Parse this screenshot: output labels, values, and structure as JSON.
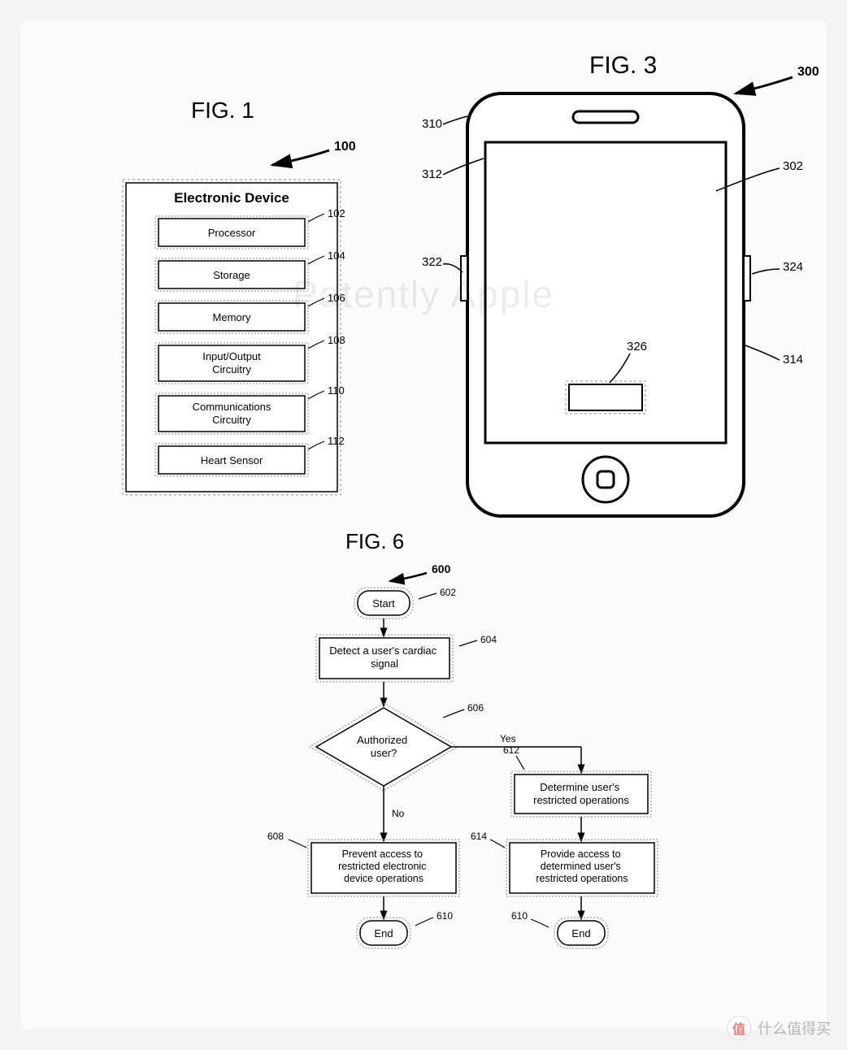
{
  "watermark": "Patently Apple",
  "footer": {
    "badge": "值",
    "text": "什么值得买"
  },
  "colors": {
    "stroke": "#000000",
    "fill_box": "#ffffff",
    "dash": "#888888",
    "bg": "#fbfbfb"
  },
  "fig1": {
    "title": "FIG. 1",
    "arrow_label": "100",
    "header": "Electronic Device",
    "blocks": [
      {
        "label": "Processor",
        "ref": "102"
      },
      {
        "label": "Storage",
        "ref": "104"
      },
      {
        "label": "Memory",
        "ref": "106"
      },
      {
        "label": "Input/Output Circuitry",
        "ref": "108"
      },
      {
        "label": "Communications Circuitry",
        "ref": "110"
      },
      {
        "label": "Heart Sensor",
        "ref": "112"
      }
    ]
  },
  "fig3": {
    "title": "FIG. 3",
    "arrow_label": "300",
    "refs": {
      "r310": "310",
      "r302": "302",
      "r312": "312",
      "r322": "322",
      "r324": "324",
      "r314": "314",
      "r326": "326"
    }
  },
  "fig6": {
    "title": "FIG. 6",
    "arrow_label": "600",
    "nodes": {
      "start": {
        "label": "Start",
        "ref": "602"
      },
      "detect": {
        "label": "Detect a user's cardiac signal",
        "ref": "604"
      },
      "auth": {
        "label": "Authorized user?",
        "ref": "606"
      },
      "prevent": {
        "label": "Prevent access to restricted electronic device operations",
        "ref": "608"
      },
      "determine": {
        "label": "Determine user's restricted operations",
        "ref": "612"
      },
      "provide": {
        "label": "Provide access to determined user's restricted operations",
        "ref": "614"
      },
      "end1": {
        "label": "End",
        "ref": "610"
      },
      "end2": {
        "label": "End",
        "ref": "610"
      }
    },
    "edges": {
      "yes": "Yes",
      "no": "No"
    }
  }
}
